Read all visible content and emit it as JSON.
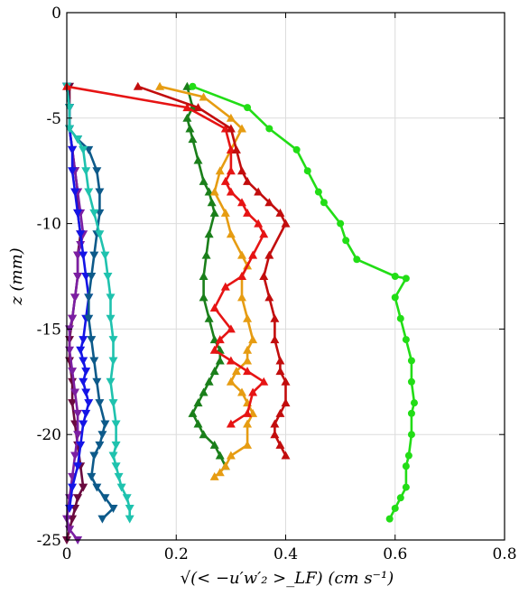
{
  "chart_data": {
    "type": "line",
    "title": "",
    "xlabel": "√(< −u′w′₂ >_LF) (cm s⁻¹)",
    "ylabel": "z (mm)",
    "xlim": [
      0,
      0.8
    ],
    "ylim": [
      -25,
      0
    ],
    "xticks": [
      "0",
      "0.2",
      "0.4",
      "0.6",
      "0.8"
    ],
    "yticks": [
      "0",
      "-5",
      "-10",
      "-15",
      "-20",
      "-25"
    ],
    "grid": true,
    "series": [
      {
        "color": "#6a0a3f",
        "marker": "triangle-down",
        "x": [
          0.005,
          0.005,
          0.005,
          0.01,
          0.015,
          0.02,
          0.02,
          0.025,
          0.02,
          0.02,
          0.015,
          0.01,
          0.005,
          0.005,
          0.01,
          0.01,
          0.015,
          0.02,
          0.025,
          0.03,
          0.02,
          0.015,
          0.01,
          0.005,
          0.0
        ],
        "y": [
          -3.5,
          -4.5,
          -5.5,
          -6.5,
          -7.5,
          -8.5,
          -9.5,
          -10.5,
          -11.5,
          -12.5,
          -13.5,
          -14.5,
          -15.5,
          -16.5,
          -17.5,
          -18.5,
          -19.5,
          -20.5,
          -21.5,
          -22.5,
          -23.0,
          -23.5,
          -24.0,
          -24.5,
          -25.0
        ]
      },
      {
        "color": "#7b1fa2",
        "marker": "triangle-down",
        "x": [
          0.0,
          0.005,
          0.005,
          0.01,
          0.015,
          0.02,
          0.025,
          0.03,
          0.025,
          0.02,
          0.02,
          0.015,
          0.01,
          0.005,
          0.005,
          0.01,
          0.015,
          0.02,
          0.02,
          0.015,
          0.01,
          0.005,
          0.0,
          0.005,
          0.02
        ],
        "y": [
          -3.5,
          -4.5,
          -5.5,
          -6.5,
          -7.5,
          -8.5,
          -9.5,
          -10.5,
          -11.0,
          -11.5,
          -12.5,
          -13.5,
          -14.5,
          -15.0,
          -16.0,
          -17.0,
          -18.0,
          -19.0,
          -20.0,
          -21.0,
          -22.0,
          -23.0,
          -24.0,
          -24.5,
          -25.0
        ]
      },
      {
        "color": "#1414e6",
        "marker": "triangle-down",
        "x": [
          0.0,
          0.005,
          0.005,
          0.01,
          0.01,
          0.015,
          0.02,
          0.025,
          0.03,
          0.035,
          0.04,
          0.035,
          0.03,
          0.025,
          0.03,
          0.035,
          0.03,
          0.035,
          0.04,
          0.035,
          0.03,
          0.025,
          0.02,
          0.01,
          0.005
        ],
        "y": [
          -3.5,
          -4.5,
          -5.5,
          -6.5,
          -7.5,
          -8.5,
          -9.5,
          -10.5,
          -11.5,
          -12.5,
          -13.5,
          -14.5,
          -15.5,
          -16.0,
          -16.5,
          -17.0,
          -17.5,
          -18.0,
          -18.5,
          -19.0,
          -19.5,
          -20.5,
          -21.5,
          -22.5,
          -23.5
        ]
      },
      {
        "color": "#0d5a8a",
        "marker": "triangle-down",
        "x": [
          0.0,
          0.005,
          0.005,
          0.02,
          0.04,
          0.055,
          0.06,
          0.06,
          0.055,
          0.05,
          0.045,
          0.04,
          0.04,
          0.045,
          0.05,
          0.055,
          0.06,
          0.07,
          0.065,
          0.06,
          0.05,
          0.045,
          0.055,
          0.07,
          0.085,
          0.065
        ],
        "y": [
          -3.5,
          -4.5,
          -5.5,
          -6.0,
          -6.5,
          -7.5,
          -8.5,
          -9.5,
          -10.5,
          -11.5,
          -12.5,
          -13.5,
          -14.5,
          -15.5,
          -16.5,
          -17.5,
          -18.5,
          -19.5,
          -20.0,
          -20.5,
          -21.0,
          -22.0,
          -22.5,
          -23.0,
          -23.5,
          -24.0
        ]
      },
      {
        "color": "#1fc2ae",
        "marker": "triangle-down",
        "x": [
          0.0,
          0.005,
          0.005,
          0.02,
          0.03,
          0.035,
          0.04,
          0.05,
          0.06,
          0.07,
          0.075,
          0.08,
          0.08,
          0.085,
          0.085,
          0.08,
          0.085,
          0.09,
          0.09,
          0.085,
          0.09,
          0.095,
          0.1,
          0.11,
          0.115,
          0.115
        ],
        "y": [
          -3.5,
          -4.5,
          -5.5,
          -6.0,
          -6.5,
          -7.5,
          -8.5,
          -9.5,
          -10.5,
          -11.5,
          -12.5,
          -13.5,
          -14.5,
          -15.5,
          -16.5,
          -17.5,
          -18.5,
          -19.5,
          -20.5,
          -21.0,
          -21.5,
          -22.0,
          -22.5,
          -23.0,
          -23.5,
          -24.0
        ]
      },
      {
        "color": "#1a7f1a",
        "marker": "triangle-up",
        "x": [
          0.22,
          0.23,
          0.22,
          0.225,
          0.23,
          0.24,
          0.25,
          0.26,
          0.265,
          0.27,
          0.26,
          0.255,
          0.25,
          0.25,
          0.26,
          0.27,
          0.28,
          0.28,
          0.27,
          0.26,
          0.25,
          0.24,
          0.23,
          0.24,
          0.25,
          0.27,
          0.28,
          0.29
        ],
        "y": [
          -3.5,
          -4.5,
          -5.0,
          -5.5,
          -6.0,
          -7.0,
          -8.0,
          -8.5,
          -9.0,
          -9.5,
          -10.5,
          -11.5,
          -12.5,
          -13.5,
          -14.5,
          -15.5,
          -16.0,
          -16.5,
          -17.0,
          -17.5,
          -18.0,
          -18.5,
          -19.0,
          -19.5,
          -20.0,
          -20.5,
          -21.0,
          -21.5
        ]
      },
      {
        "color": "#e69c12",
        "marker": "triangle-up",
        "x": [
          0.17,
          0.25,
          0.3,
          0.32,
          0.3,
          0.28,
          0.27,
          0.29,
          0.3,
          0.32,
          0.33,
          0.32,
          0.32,
          0.33,
          0.34,
          0.33,
          0.33,
          0.31,
          0.3,
          0.32,
          0.33,
          0.34,
          0.33,
          0.33,
          0.3,
          0.29,
          0.28,
          0.27
        ],
        "y": [
          -3.5,
          -4.0,
          -5.0,
          -5.5,
          -6.5,
          -7.5,
          -8.5,
          -9.5,
          -10.5,
          -11.5,
          -12.0,
          -12.5,
          -13.5,
          -14.5,
          -15.5,
          -16.0,
          -16.5,
          -17.0,
          -17.5,
          -18.0,
          -18.5,
          -19.0,
          -19.5,
          -20.5,
          -21.0,
          -21.5,
          -21.8,
          -22.0
        ]
      },
      {
        "color": "#e61414",
        "marker": "triangle-up",
        "x": [
          0.0,
          0.22,
          0.29,
          0.3,
          0.3,
          0.29,
          0.3,
          0.32,
          0.33,
          0.35,
          0.36,
          0.34,
          0.32,
          0.29,
          0.27,
          0.3,
          0.28,
          0.27,
          0.3,
          0.33,
          0.36,
          0.34,
          0.33,
          0.3
        ],
        "y": [
          -3.5,
          -4.5,
          -5.5,
          -6.5,
          -7.5,
          -8.0,
          -8.5,
          -9.0,
          -9.5,
          -10.0,
          -10.5,
          -11.5,
          -12.5,
          -13.0,
          -14.0,
          -15.0,
          -15.5,
          -16.0,
          -16.5,
          -17.0,
          -17.5,
          -18.0,
          -19.0,
          -19.5
        ]
      },
      {
        "color": "#c20d0d",
        "marker": "triangle-up",
        "x": [
          0.13,
          0.24,
          0.3,
          0.31,
          0.32,
          0.33,
          0.35,
          0.37,
          0.39,
          0.4,
          0.37,
          0.36,
          0.37,
          0.38,
          0.38,
          0.39,
          0.39,
          0.4,
          0.4,
          0.39,
          0.38,
          0.38,
          0.39,
          0.4
        ],
        "y": [
          -3.5,
          -4.5,
          -5.5,
          -6.5,
          -7.5,
          -8.0,
          -8.5,
          -9.0,
          -9.5,
          -10.0,
          -11.5,
          -12.5,
          -13.5,
          -14.5,
          -15.5,
          -16.5,
          -17.0,
          -17.5,
          -18.5,
          -19.0,
          -19.5,
          -20.0,
          -20.5,
          -21.0
        ]
      },
      {
        "color": "#22dd16",
        "marker": "circle",
        "x": [
          0.23,
          0.33,
          0.37,
          0.42,
          0.44,
          0.46,
          0.47,
          0.5,
          0.51,
          0.53,
          0.6,
          0.62,
          0.6,
          0.61,
          0.62,
          0.63,
          0.63,
          0.635,
          0.63,
          0.63,
          0.625,
          0.62,
          0.62,
          0.61,
          0.6,
          0.59
        ],
        "y": [
          -3.5,
          -4.5,
          -5.5,
          -6.5,
          -7.5,
          -8.5,
          -9.0,
          -10.0,
          -10.8,
          -11.7,
          -12.5,
          -12.6,
          -13.5,
          -14.5,
          -15.5,
          -16.5,
          -17.5,
          -18.5,
          -19.0,
          -20.0,
          -21.0,
          -21.5,
          -22.5,
          -23.0,
          -23.5,
          -24.0
        ]
      }
    ]
  }
}
